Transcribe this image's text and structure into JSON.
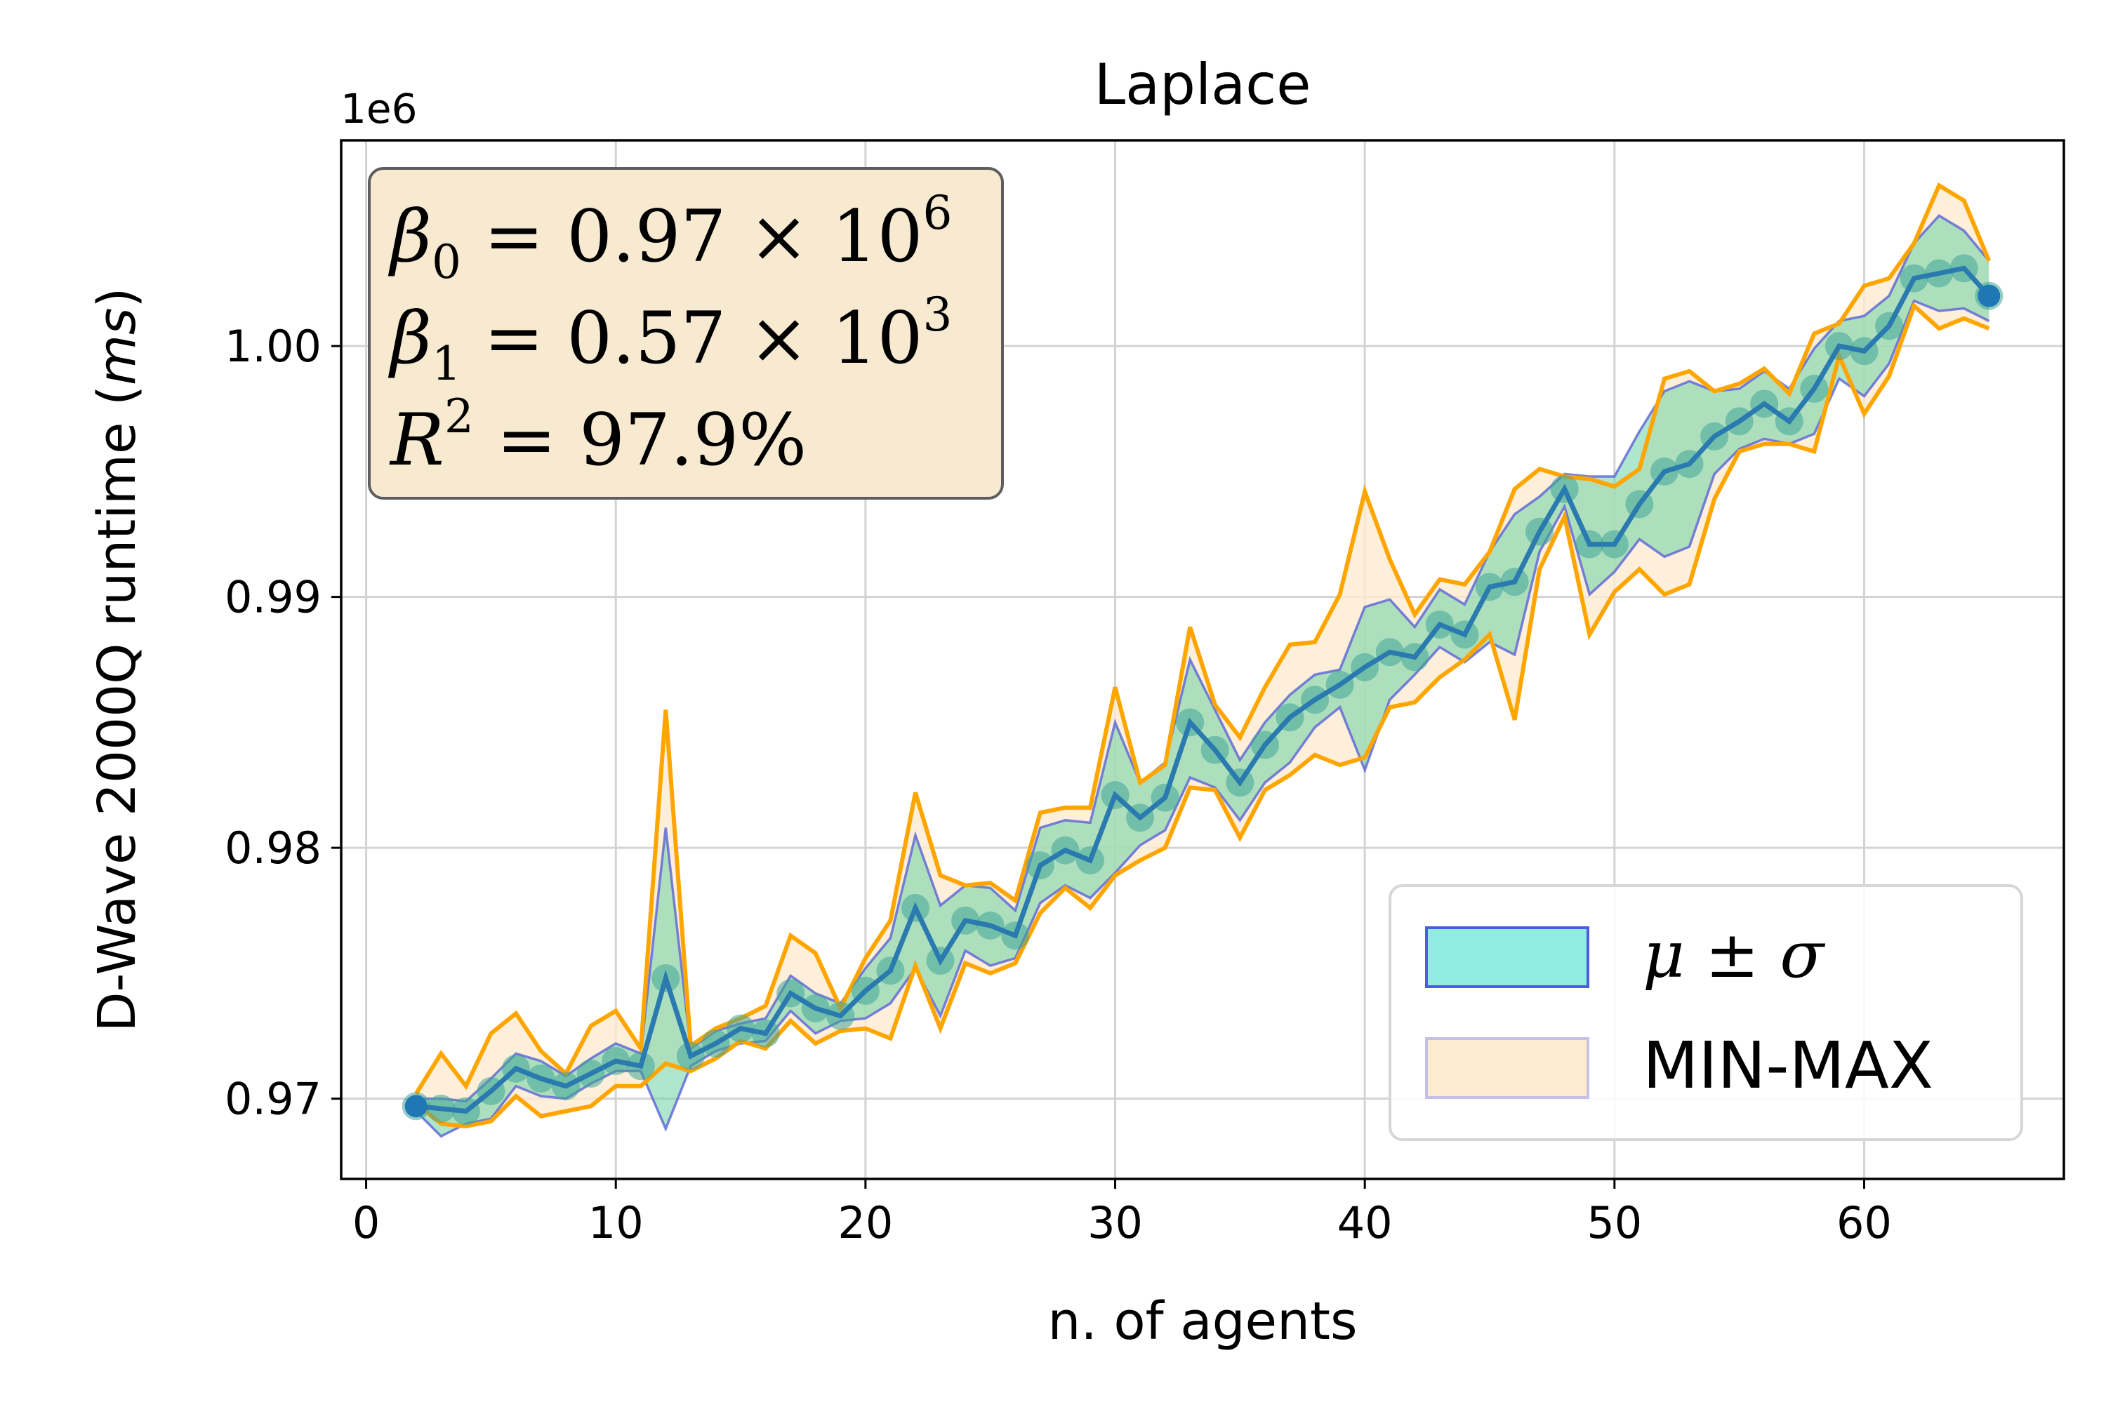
{
  "chart_data": {
    "type": "line",
    "title": "Laplace",
    "xlabel": "n. of agents",
    "ylabel": "D-Wave 2000Q runtime (ms)",
    "y_offset_label": "1e6",
    "xlim": [
      -1,
      68
    ],
    "ylim": [
      966800,
      1008200
    ],
    "xticks": [
      0,
      10,
      20,
      30,
      40,
      50,
      60
    ],
    "yticks": [
      970000,
      980000,
      990000,
      1000000
    ],
    "ytick_labels": [
      "0.97",
      "0.98",
      "0.99",
      "1.00"
    ],
    "grid": true,
    "legend_position": "lower-right",
    "legend": [
      {
        "label": "μ ± σ",
        "fill": "#90ebe0",
        "edge": "#4b5ce8"
      },
      {
        "label": "MIN-MAX",
        "fill": "#fdebcf",
        "edge": "#c6c0e6"
      }
    ],
    "annotation": {
      "lines": [
        {
          "symbol": "β",
          "sub": "0",
          "rhs": "= 0.97 × 10",
          "sup": "6"
        },
        {
          "symbol": "β",
          "sub": "1",
          "rhs": "= 0.57 × 10",
          "sup": "3"
        },
        {
          "symbol": "R",
          "sub": "",
          "rhs": "= 97.9%",
          "sup": "2"
        }
      ],
      "box_fill": "#f8e9d1",
      "box_edge": "#5e5e5e"
    },
    "colors": {
      "mean": "#2a7ab0",
      "mean_markers": "#3fa497",
      "std_band": "#6bd1a6",
      "std_edge": "#5b63d6",
      "minmax_band": "#fdebcf",
      "minmax_edge": "#ffa500",
      "endpoints": "#1f77b4"
    },
    "x": [
      2,
      3,
      4,
      5,
      6,
      7,
      8,
      9,
      10,
      11,
      12,
      13,
      14,
      15,
      16,
      17,
      18,
      19,
      20,
      21,
      22,
      23,
      24,
      25,
      26,
      27,
      28,
      29,
      30,
      31,
      32,
      33,
      34,
      35,
      36,
      37,
      38,
      39,
      40,
      41,
      42,
      43,
      44,
      45,
      46,
      47,
      48,
      49,
      50,
      51,
      52,
      53,
      54,
      55,
      56,
      57,
      58,
      59,
      60,
      61,
      62,
      63,
      64,
      65
    ],
    "series": [
      {
        "name": "mean",
        "values": [
          969700,
          969600,
          969500,
          970300,
          971200,
          970800,
          970500,
          971000,
          971500,
          971300,
          974800,
          971700,
          972200,
          972800,
          972600,
          974200,
          973600,
          973300,
          974300,
          975100,
          977600,
          975500,
          977100,
          976900,
          976500,
          979300,
          979900,
          979500,
          982100,
          981200,
          982000,
          985000,
          983900,
          982600,
          984100,
          985200,
          985900,
          986500,
          987200,
          987800,
          987600,
          988900,
          988500,
          990400,
          990600,
          992600,
          994300,
          992100,
          992100,
          993700,
          995000,
          995300,
          996400,
          997000,
          997700,
          997000,
          998300,
          1000000,
          999800,
          1000800,
          1002700,
          1002900,
          1003100,
          1002000
        ]
      },
      {
        "name": "mean+std",
        "values": [
          970000,
          970000,
          969900,
          970800,
          971800,
          971500,
          970900,
          971600,
          972200,
          971800,
          980800,
          972000,
          972700,
          973000,
          973200,
          974900,
          974200,
          973800,
          975200,
          976400,
          980500,
          977700,
          978500,
          978400,
          977500,
          980800,
          981100,
          981000,
          985000,
          982600,
          983400,
          987500,
          985500,
          983500,
          985000,
          986100,
          986900,
          987100,
          989600,
          989900,
          988800,
          990300,
          989700,
          991800,
          993300,
          994000,
          994900,
          994800,
          994800,
          996600,
          998200,
          998600,
          998200,
          998300,
          999000,
          998300,
          999900,
          1001000,
          1001200,
          1002000,
          1004100,
          1005200,
          1004600,
          1003400
        ]
      },
      {
        "name": "mean-std",
        "values": [
          969500,
          968500,
          969000,
          969200,
          970500,
          970100,
          970000,
          970600,
          971100,
          971100,
          968800,
          971300,
          971900,
          972200,
          972300,
          973500,
          972600,
          973100,
          973200,
          973800,
          975200,
          973300,
          975900,
          975300,
          975600,
          977800,
          978500,
          978000,
          979000,
          980100,
          980700,
          982800,
          982400,
          981100,
          982600,
          983400,
          984800,
          985600,
          983100,
          985900,
          986900,
          988000,
          987400,
          988200,
          987700,
          991800,
          993600,
          990100,
          991000,
          992300,
          991600,
          992000,
          994900,
          995900,
          996300,
          996100,
          996500,
          998700,
          998000,
          999300,
          1001800,
          1001400,
          1001500,
          1001000
        ]
      },
      {
        "name": "max",
        "values": [
          970200,
          971800,
          970500,
          972600,
          973400,
          971900,
          971000,
          972900,
          973500,
          972000,
          985500,
          972100,
          972800,
          973200,
          973700,
          976500,
          975800,
          973600,
          975600,
          977100,
          982200,
          978900,
          978500,
          978600,
          977900,
          981400,
          981600,
          981600,
          986400,
          982600,
          983300,
          988800,
          985700,
          984400,
          986400,
          988100,
          988200,
          990100,
          994200,
          991500,
          989300,
          990700,
          990500,
          991800,
          994300,
          995100,
          994800,
          994700,
          994400,
          995100,
          998700,
          999000,
          998200,
          998500,
          999100,
          998100,
          1000500,
          1000900,
          1002400,
          1002700,
          1004100,
          1006400,
          1005800,
          1003400
        ]
      },
      {
        "name": "min",
        "values": [
          969800,
          969000,
          968900,
          969100,
          970100,
          969300,
          969500,
          969700,
          970500,
          970500,
          971400,
          971100,
          971600,
          972300,
          972000,
          973100,
          972200,
          972700,
          972800,
          972400,
          975300,
          972800,
          975400,
          975000,
          975400,
          977400,
          978400,
          977600,
          978900,
          979500,
          980000,
          982400,
          982300,
          980400,
          982300,
          982900,
          983700,
          983300,
          983600,
          985600,
          985800,
          986800,
          987500,
          988500,
          985100,
          991100,
          993200,
          988500,
          990200,
          991100,
          990100,
          990500,
          993900,
          995800,
          996100,
          996100,
          995800,
          999600,
          997300,
          998800,
          1001600,
          1000700,
          1001100,
          1000700
        ]
      }
    ]
  }
}
